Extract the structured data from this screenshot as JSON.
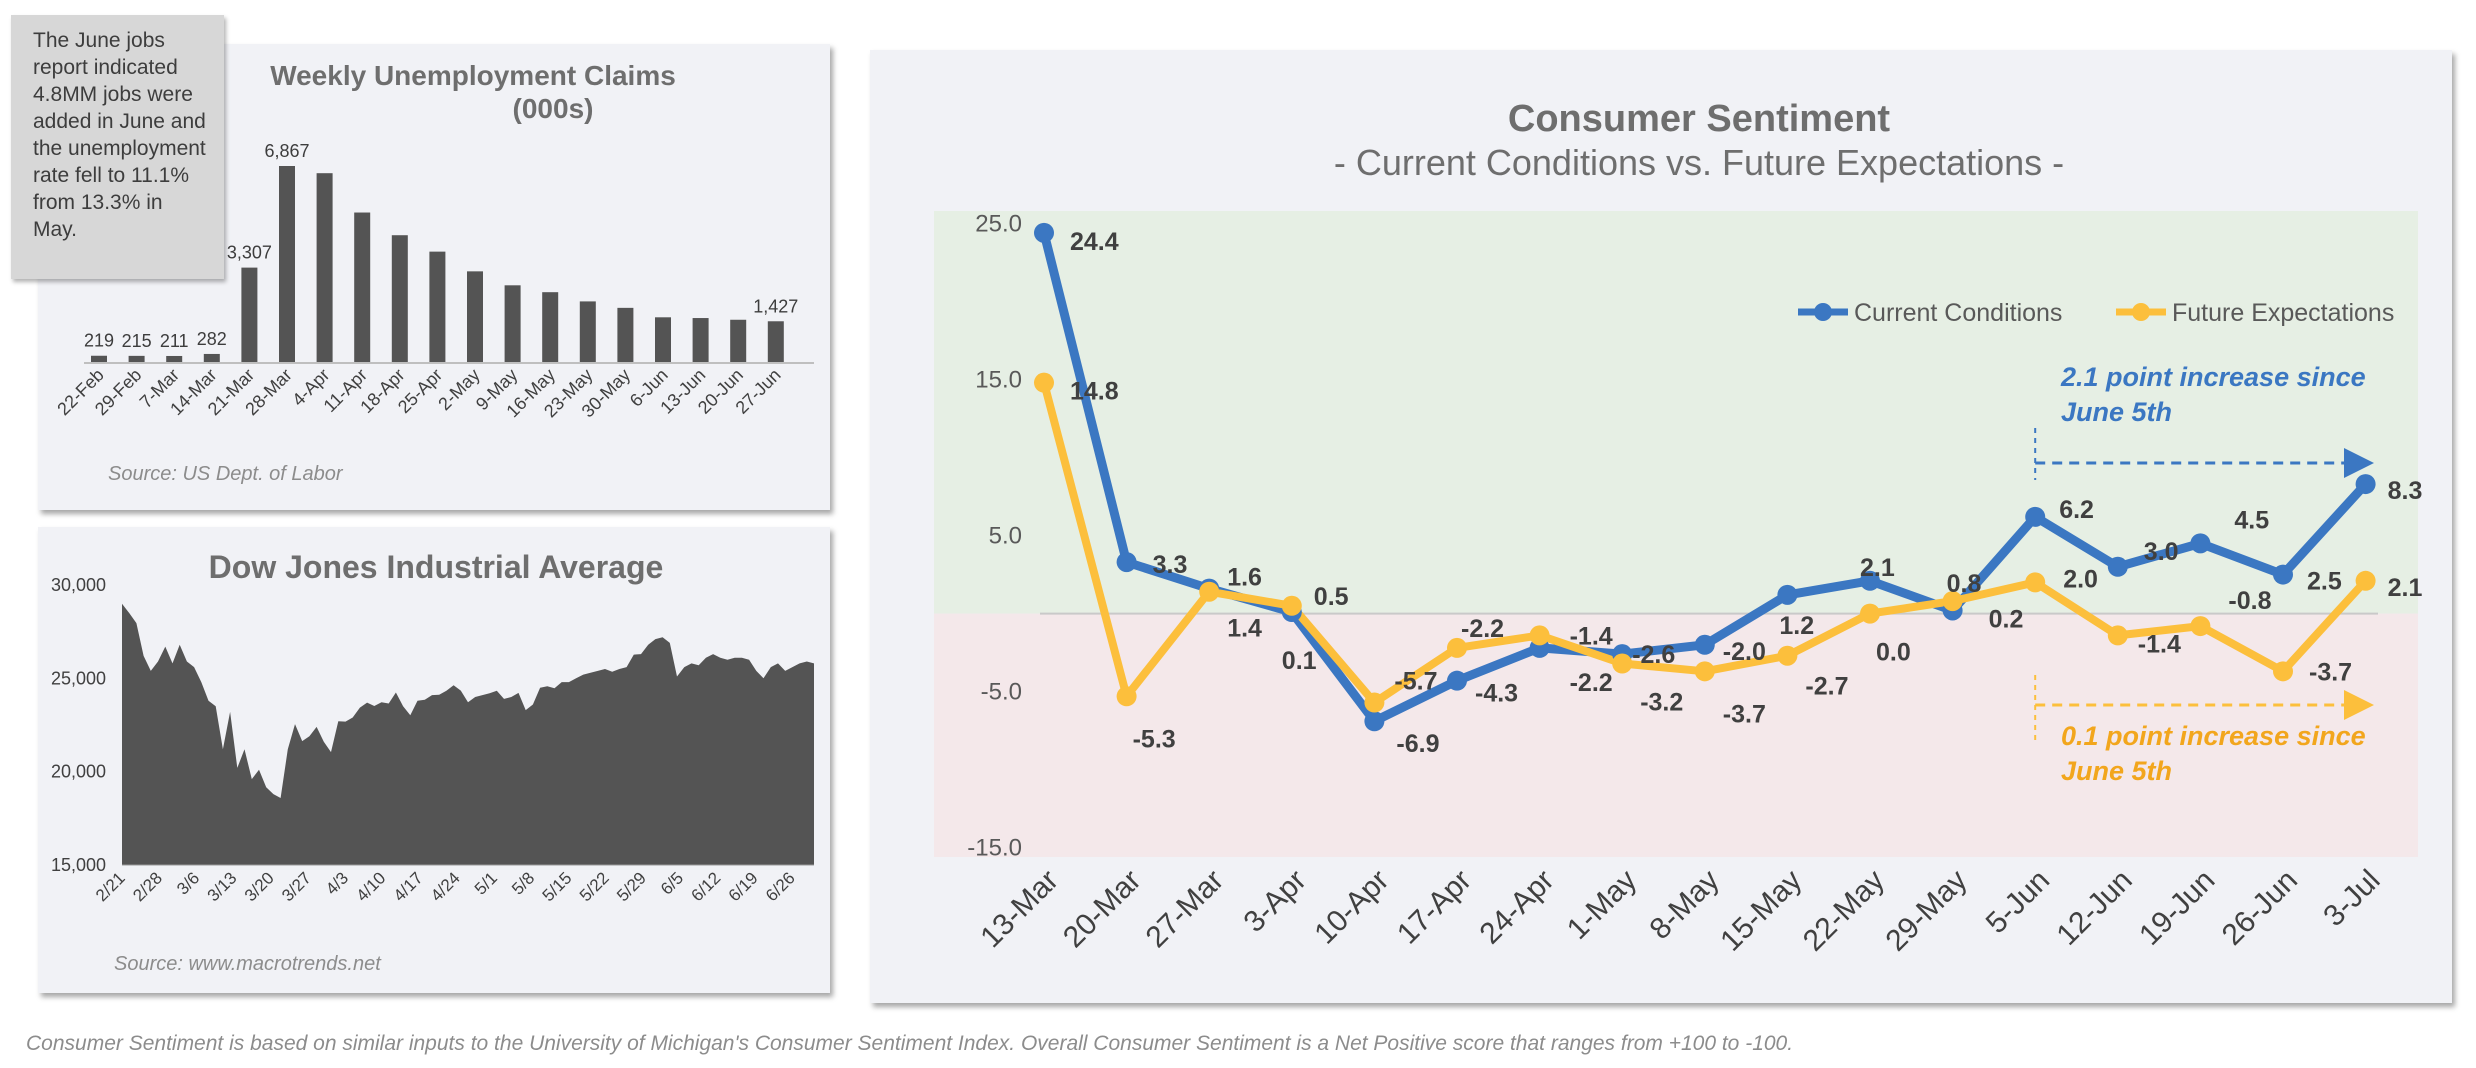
{
  "note": "The June jobs report indicated 4.8MM jobs were added in June and the unemployment rate fell to 11.1% from 13.3% in May.",
  "footnote": "Consumer Sentiment is based on similar inputs to the University of Michigan's Consumer Sentiment Index. Overall Consumer Sentiment is a Net Positive score that ranges from +100 to -100.",
  "colors": {
    "current": "#3b77c2",
    "future": "#fcbf3c",
    "bars": "#545454",
    "area": "#545454",
    "positive_band": "#e6efe4",
    "negative_band": "#f4e8ea"
  },
  "chart_data": [
    {
      "type": "bar",
      "title": "Weekly Unemployment Claims",
      "subtitle": "(000s)",
      "source": "Source: US Dept. of Labor",
      "categories": [
        "22-Feb",
        "29-Feb",
        "7-Mar",
        "14-Mar",
        "21-Mar",
        "28-Mar",
        "4-Apr",
        "11-Apr",
        "18-Apr",
        "25-Apr",
        "2-May",
        "9-May",
        "16-May",
        "23-May",
        "30-May",
        "6-Jun",
        "13-Jun",
        "20-Jun",
        "27-Jun"
      ],
      "values": [
        219,
        215,
        211,
        282,
        3307,
        6867,
        6615,
        5237,
        4442,
        3867,
        3176,
        2687,
        2446,
        2123,
        1897,
        1566,
        1540,
        1480,
        1427
      ],
      "data_labels": [
        "219",
        "215",
        "211",
        "282",
        "3,307",
        "6,867",
        "",
        "",
        "",
        "",
        "",
        "",
        "",
        "",
        "",
        "",
        "",
        "",
        "1,427"
      ],
      "ylim": [
        0,
        7500
      ]
    },
    {
      "type": "area",
      "title": "Dow Jones Industrial Average",
      "source": "Source: www.macrotrends.net",
      "x_ticks": [
        "2/21",
        "2/28",
        "3/6",
        "3/13",
        "3/20",
        "3/27",
        "4/3",
        "4/10",
        "4/17",
        "4/24",
        "5/1",
        "5/8",
        "5/15",
        "5/22",
        "5/29",
        "6/5",
        "6/12",
        "6/19",
        "6/26"
      ],
      "y_ticks": [
        "15,000",
        "20,000",
        "25,000",
        "30,000"
      ],
      "ylim": [
        15000,
        30000
      ],
      "values": [
        28992,
        28500,
        27960,
        26200,
        25400,
        25900,
        26700,
        25800,
        26800,
        25900,
        25600,
        24800,
        23800,
        23500,
        21200,
        23200,
        20200,
        21200,
        19600,
        20100,
        19170,
        18800,
        18590,
        21200,
        22550,
        21640,
        21900,
        22400,
        21600,
        21050,
        22700,
        22680,
        22900,
        23430,
        23700,
        23520,
        23720,
        23650,
        24240,
        23500,
        23020,
        23800,
        23850,
        24100,
        24120,
        24330,
        24630,
        24345,
        23720,
        24000,
        24100,
        24200,
        24330,
        23900,
        24000,
        24221,
        23300,
        23600,
        24500,
        24580,
        24470,
        24800,
        24800,
        25000,
        25200,
        25300,
        25400,
        25500,
        25350,
        25500,
        25600,
        26270,
        26300,
        26800,
        27100,
        27200,
        26900,
        25100,
        25600,
        25800,
        25700,
        26100,
        26300,
        26100,
        26000,
        26100,
        26100,
        26000,
        25400,
        25000,
        25600,
        25800,
        25400,
        25600,
        25800,
        25900,
        25800
      ]
    },
    {
      "type": "line",
      "title": "Consumer Sentiment",
      "subtitle": "- Current Conditions vs. Future Expectations -",
      "categories": [
        "13-Mar",
        "20-Mar",
        "27-Mar",
        "3-Apr",
        "10-Apr",
        "17-Apr",
        "24-Apr",
        "1-May",
        "8-May",
        "15-May",
        "22-May",
        "29-May",
        "5-Jun",
        "12-Jun",
        "19-Jun",
        "26-Jun",
        "3-Jul"
      ],
      "y_ticks": [
        "25.0",
        "15.0",
        "5.0",
        "-5.0",
        "-15.0"
      ],
      "ylim": [
        -15,
        25.8
      ],
      "series": [
        {
          "name": "Current Conditions",
          "values": [
            24.4,
            3.3,
            1.6,
            0.1,
            -6.9,
            -4.3,
            -2.2,
            -2.6,
            -2.0,
            1.2,
            2.1,
            0.2,
            6.2,
            3.0,
            4.5,
            2.5,
            8.3
          ],
          "labels": [
            "24.4",
            "3.3",
            "1.6",
            "0.1",
            "-6.9",
            "-4.3",
            "-2.2",
            "-2.6",
            "-2.0",
            "1.2",
            "2.1",
            "0.2",
            "6.2",
            "3.0",
            "4.5",
            "2.5",
            "8.3"
          ]
        },
        {
          "name": "Future Expectations",
          "values": [
            14.8,
            -5.3,
            1.4,
            0.5,
            -5.7,
            -2.2,
            -1.4,
            -3.2,
            -3.7,
            -2.7,
            0.0,
            0.8,
            2.0,
            -1.4,
            -0.8,
            -3.7,
            2.1
          ],
          "labels": [
            "14.8",
            "-5.3",
            "1.4",
            "0.5",
            "-5.7",
            "-2.2",
            "-1.4",
            "-3.2",
            "-3.7",
            "-2.7",
            "0.0",
            "0.8",
            "2.0",
            "-1.4",
            "-0.8",
            "-3.7",
            "2.1"
          ]
        }
      ],
      "annotations": [
        {
          "text_line1": "2.1 point increase since",
          "text_line2": "June 5th",
          "series": "Current Conditions"
        },
        {
          "text_line1": "0.1 point increase since",
          "text_line2": "June 5th",
          "series": "Future Expectations"
        }
      ],
      "legend": "top-right"
    }
  ]
}
